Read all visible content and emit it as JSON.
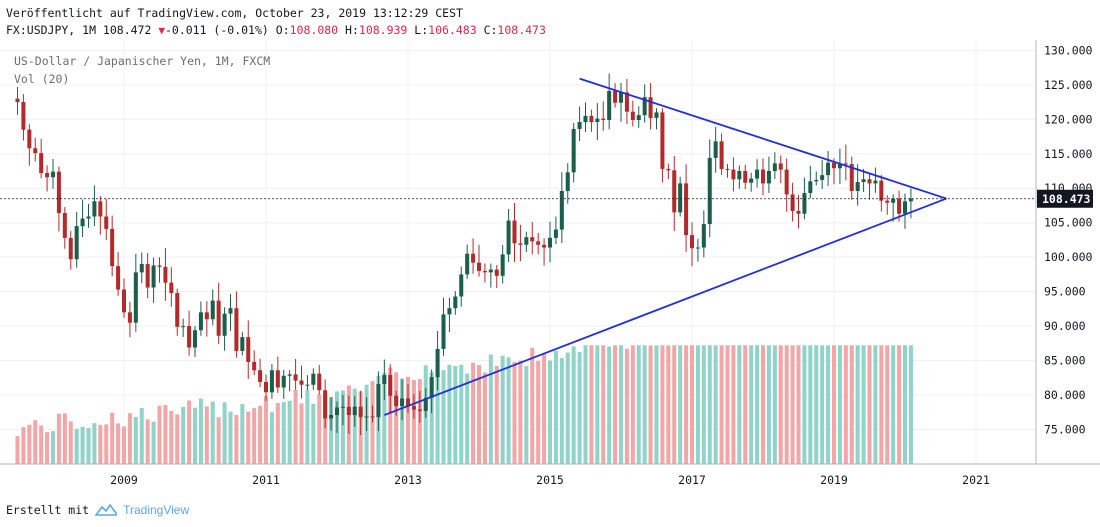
{
  "header": {
    "published": "Veröffentlicht auf TradingView.com, October 23, 2019 13:12:29 CEST",
    "symbol": "FX:USDJPY, 1M 108.472",
    "change": "-0.011 (-0.01%)",
    "o_label": "O:",
    "o_value": "108.080",
    "h_label": "H:",
    "h_value": "108.939",
    "l_label": "L:",
    "l_value": "106.483",
    "c_label": "C:",
    "c_value": "108.473"
  },
  "legend": {
    "pair": "US-Dollar / Japanischer Yen, 1M, FXCM",
    "volume": "Vol (20)"
  },
  "footer": {
    "created_with": "Erstellt mit",
    "brand": "TradingView"
  },
  "colors": {
    "up": "#1b5e4a",
    "down": "#b22a2a",
    "vol_up": "#8fd3c9",
    "vol_down": "#f2a6a6",
    "trendline": "#1f2ee0",
    "price_label_bg": "#131722",
    "grid": "#eef0f3"
  },
  "chart_data": {
    "type": "candlestick",
    "instrument": "USDJPY",
    "interval": "1M",
    "x_ticks": [
      "2009",
      "2011",
      "2013",
      "2015",
      "2017",
      "2019",
      "2021"
    ],
    "y_ticks": [
      "75.000",
      "80.000",
      "85.000",
      "90.000",
      "95.000",
      "100.000",
      "105.000",
      "110.000",
      "115.000",
      "120.000",
      "125.000",
      "130.000"
    ],
    "ylim": [
      70,
      131.5
    ],
    "current_price": "108.473",
    "start": "2007-07",
    "closes": [
      122.5,
      118.5,
      115.8,
      115.1,
      112.2,
      111.6,
      112.4,
      106.4,
      102.8,
      99.7,
      104.5,
      105.6,
      105.9,
      108.1,
      105.9,
      104.1,
      98.7,
      95.3,
      92.0,
      90.5,
      97.8,
      99.0,
      95.6,
      98.8,
      98.6,
      96.3,
      94.8,
      89.9,
      90.0,
      86.9,
      89.4,
      92.0,
      91.0,
      93.7,
      88.6,
      91.8,
      92.6,
      86.4,
      88.4,
      84.8,
      83.6,
      81.9,
      80.4,
      83.6,
      81.1,
      82.8,
      83.0,
      82.1,
      81.5,
      81.5,
      83.1,
      80.7,
      76.6,
      77.1,
      78.2,
      78.3,
      77.1,
      78.3,
      76.8,
      76.9,
      76.8,
      81.6,
      82.9,
      79.9,
      78.4,
      79.5,
      78.4,
      77.9,
      77.7,
      79.6,
      82.6,
      86.7,
      91.7,
      92.6,
      94.3,
      97.5,
      100.5,
      99.2,
      98.0,
      97.8,
      98.2,
      97.3,
      100.4,
      105.3,
      102.0,
      101.8,
      102.9,
      102.3,
      101.8,
      101.4,
      102.8,
      104.0,
      109.6,
      112.3,
      118.6,
      119.6,
      120.5,
      119.6,
      120.1,
      119.9,
      124.1,
      122.4,
      123.9,
      121.1,
      119.9,
      120.6,
      123.2,
      120.2,
      121.0,
      112.8,
      112.6,
      106.5,
      110.7,
      103.2,
      101.3,
      101.4,
      104.8,
      114.4,
      116.8,
      112.8,
      112.7,
      111.3,
      112.5,
      110.8,
      111.4,
      112.7,
      110.7,
      112.5,
      113.6,
      112.7,
      109.1,
      106.7,
      106.3,
      109.3,
      111.0,
      111.2,
      111.9,
      113.7,
      112.9,
      113.6,
      113.5,
      109.6,
      110.9,
      111.3,
      110.7,
      111.1,
      108.2,
      107.9,
      108.5,
      106.3,
      108.1,
      108.5
    ],
    "volume_trendlines": [
      {
        "name": "",
        "from": [
          "2015-06",
          125.9
        ],
        "to": [
          "2020-08",
          108.5
        ]
      },
      {
        "name": "",
        "from": [
          "2012-09",
          77.1
        ],
        "to": [
          "2020-08",
          108.5
        ]
      }
    ]
  }
}
